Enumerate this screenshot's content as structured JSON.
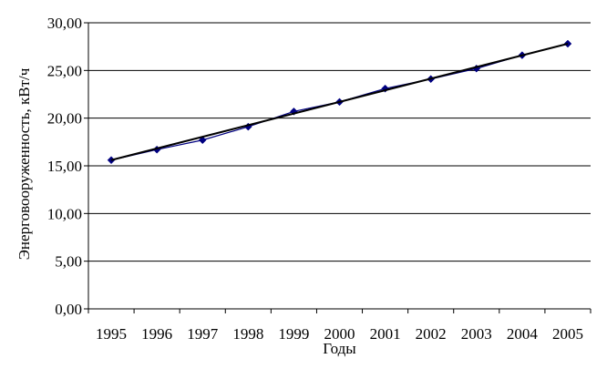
{
  "chart_data": {
    "type": "line",
    "title": "",
    "xlabel": "Годы",
    "ylabel": "Энерговооруженность, кВт/ч",
    "x": [
      "1995",
      "1996",
      "1997",
      "1998",
      "1999",
      "2000",
      "2001",
      "2002",
      "2003",
      "2004",
      "2005"
    ],
    "series": [
      {
        "values": [
          15.6,
          16.7,
          17.7,
          19.1,
          20.7,
          21.7,
          23.1,
          24.1,
          25.2,
          26.6,
          27.8
        ],
        "color": "#000080",
        "marker": "diamond"
      }
    ],
    "trendline": {
      "type": "linear",
      "color": "#000000",
      "start": 15.6,
      "end": 27.8
    },
    "ylim": [
      0,
      30
    ],
    "yticks": [
      "0,00",
      "5,00",
      "10,00",
      "15,00",
      "20,00",
      "25,00",
      "30,00"
    ],
    "grid": "horizontal",
    "legend": "none"
  }
}
